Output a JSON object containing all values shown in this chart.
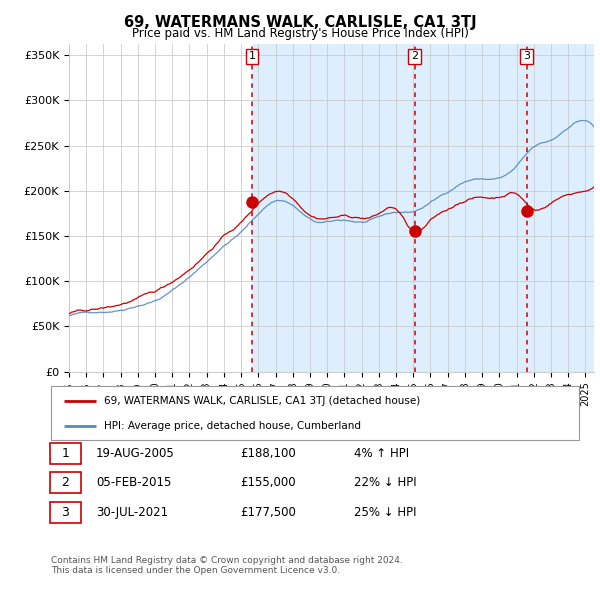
{
  "title": "69, WATERMANS WALK, CARLISLE, CA1 3TJ",
  "subtitle": "Price paid vs. HM Land Registry's House Price Index (HPI)",
  "ylabel_ticks": [
    "£0",
    "£50K",
    "£100K",
    "£150K",
    "£200K",
    "£250K",
    "£300K",
    "£350K"
  ],
  "ytick_values": [
    0,
    50000,
    100000,
    150000,
    200000,
    250000,
    300000,
    350000
  ],
  "ylim": [
    0,
    362000
  ],
  "xlim_start": 1995.0,
  "xlim_end": 2025.5,
  "sale_dates": [
    2005.63,
    2015.09,
    2021.58
  ],
  "sale_prices": [
    188100,
    155000,
    177500
  ],
  "sale_labels": [
    "1",
    "2",
    "3"
  ],
  "vline_color": "#cc0000",
  "red_line_color": "#cc0000",
  "blue_line_color": "#5588bb",
  "shade_color": "#ddeeff",
  "background_color": "#ffffff",
  "grid_color": "#cccccc",
  "legend_entries": [
    "69, WATERMANS WALK, CARLISLE, CA1 3TJ (detached house)",
    "HPI: Average price, detached house, Cumberland"
  ],
  "table_rows": [
    [
      "1",
      "19-AUG-2005",
      "£188,100",
      "4% ↑ HPI"
    ],
    [
      "2",
      "05-FEB-2015",
      "£155,000",
      "22% ↓ HPI"
    ],
    [
      "3",
      "30-JUL-2021",
      "£177,500",
      "25% ↓ HPI"
    ]
  ],
  "footnote": "Contains HM Land Registry data © Crown copyright and database right 2024.\nThis data is licensed under the Open Government Licence v3.0."
}
